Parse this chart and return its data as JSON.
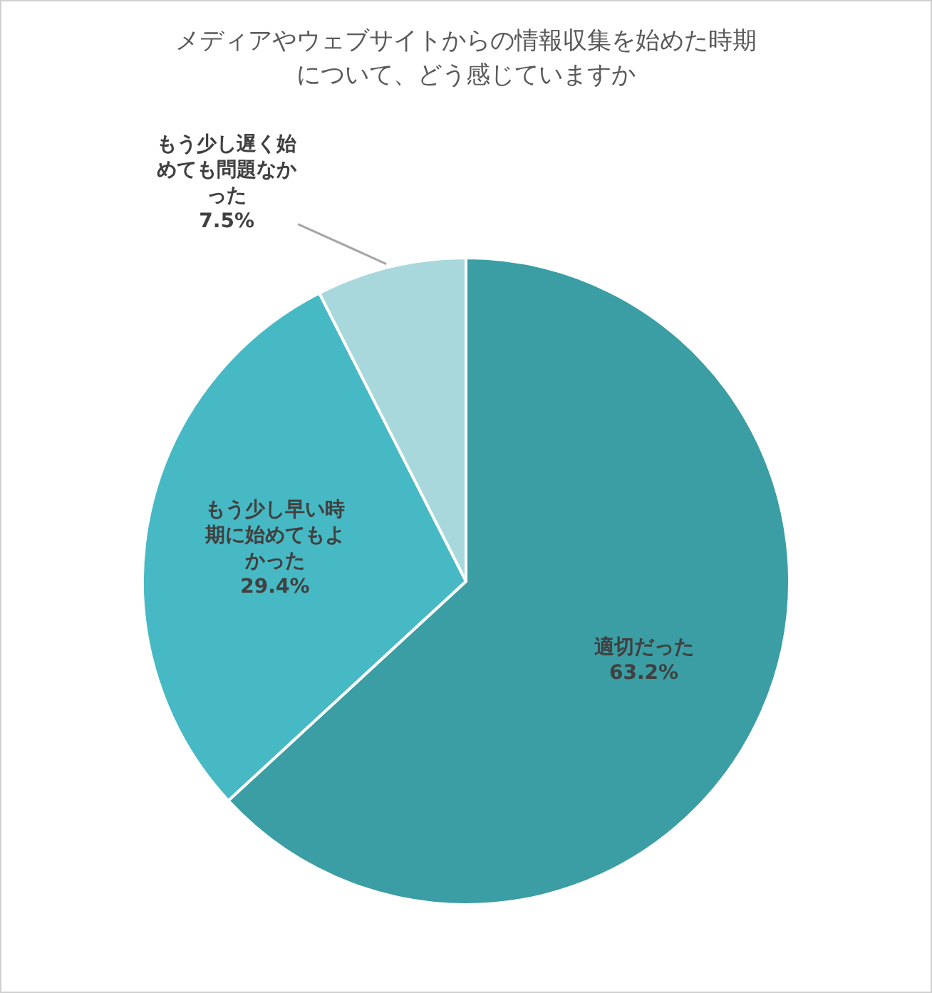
{
  "chart_data": {
    "type": "pie",
    "title": "メディアやウェブサイトからの情報収集を始めた時期について、どう感じていますか",
    "categories": [
      "適切だった",
      "もう少し早い時期に始めてもよかった",
      "もう少し遅く始めても問題なかった"
    ],
    "values": [
      63.2,
      29.4,
      7.5
    ],
    "colors": [
      "#3a9ea4",
      "#47b9c4",
      "#a8d8dc"
    ],
    "value_labels": [
      "63.2%",
      "29.4%",
      "7.5%"
    ]
  }
}
